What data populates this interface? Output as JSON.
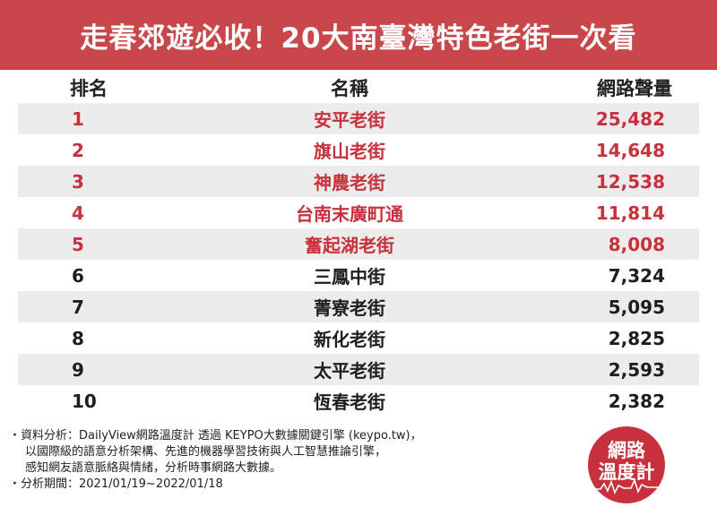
{
  "title": "走春郊遊必收！20大南臺灣特色老街一次看",
  "table": {
    "headers": {
      "rank": "排名",
      "name": "名稱",
      "volume": "網路聲量"
    },
    "rows": [
      {
        "rank": "1",
        "name": "安平老街",
        "volume": "25,482",
        "highlight": true
      },
      {
        "rank": "2",
        "name": "旗山老街",
        "volume": "14,648",
        "highlight": true
      },
      {
        "rank": "3",
        "name": "神農老街",
        "volume": "12,538",
        "highlight": true
      },
      {
        "rank": "4",
        "name": "台南末廣町通",
        "volume": "11,814",
        "highlight": true
      },
      {
        "rank": "5",
        "name": "奮起湖老街",
        "volume": "8,008",
        "highlight": true
      },
      {
        "rank": "6",
        "name": "三鳳中街",
        "volume": "7,324",
        "highlight": false
      },
      {
        "rank": "7",
        "name": "菁寮老街",
        "volume": "5,095",
        "highlight": false
      },
      {
        "rank": "8",
        "name": "新化老街",
        "volume": "2,825",
        "highlight": false
      },
      {
        "rank": "9",
        "name": "太平老街",
        "volume": "2,593",
        "highlight": false
      },
      {
        "rank": "10",
        "name": "恆春老街",
        "volume": "2,382",
        "highlight": false
      }
    ]
  },
  "footer": {
    "line1": "・資料分析：DailyView網路溫度計 透過 KEYPO大數據關鍵引擎 (keypo.tw)，",
    "line2": "以國際級的語意分析架構、先進的機器學習技術與人工智慧推論引擎，",
    "line3": "感知網友語意脈絡與情緒，分析時事網路大數據。",
    "line4": "・分析期間：2021/01/19~2022/01/18"
  },
  "logo": {
    "line1": "網路",
    "line2": "溫度計"
  },
  "colors": {
    "title_bg": "#c8474b",
    "highlight_text": "#c8313c",
    "stripe": "#ececec"
  }
}
